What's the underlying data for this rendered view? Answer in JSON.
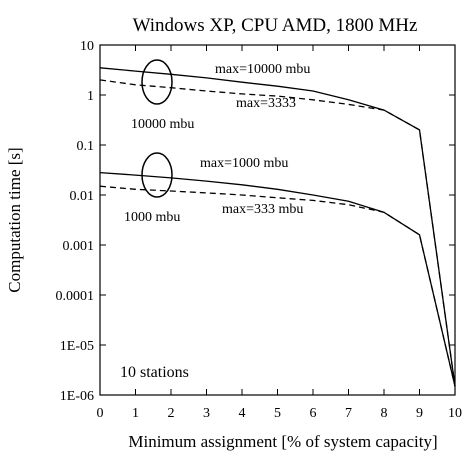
{
  "chart_data": {
    "type": "line",
    "title": "Windows XP, CPU AMD, 1800 MHz",
    "xlabel": "Minimum assignment [% of system capacity]",
    "ylabel": "Computation time [s]",
    "xlim": [
      0,
      10
    ],
    "ylim": [
      1e-06,
      10
    ],
    "y_scale": "log",
    "grid": false,
    "x_ticks": [
      "0",
      "1",
      "2",
      "3",
      "4",
      "5",
      "6",
      "7",
      "8",
      "9",
      "10"
    ],
    "y_ticks": [
      "10",
      "1",
      "0.1",
      "0.01",
      "0.001",
      "0.0001",
      "1E-05",
      "1E-06"
    ],
    "x": [
      0,
      1,
      2,
      3,
      4,
      5,
      6,
      7,
      8,
      9,
      10
    ],
    "series": [
      {
        "name": "max=10000 mbu",
        "style": "solid",
        "values": [
          3.5,
          3.0,
          2.6,
          2.2,
          1.8,
          1.5,
          1.2,
          0.8,
          0.5,
          0.2,
          1.5e-06
        ]
      },
      {
        "name": "max=3333",
        "style": "dashed",
        "values": [
          2.0,
          1.6,
          1.4,
          1.2,
          1.05,
          0.95,
          0.8,
          0.65,
          0.5,
          0.2,
          1.5e-06
        ]
      },
      {
        "name": "max=1000 mbu",
        "style": "solid",
        "values": [
          0.028,
          0.025,
          0.022,
          0.019,
          0.016,
          0.013,
          0.01,
          0.0075,
          0.0045,
          0.0016,
          1.5e-06
        ]
      },
      {
        "name": "max=333 mbu",
        "style": "dashed",
        "values": [
          0.015,
          0.013,
          0.012,
          0.011,
          0.01,
          0.0088,
          0.0078,
          0.0064,
          0.0045,
          0.0016,
          1.5e-06
        ]
      }
    ],
    "annotations": [
      {
        "text": "10000 mbu",
        "ellipse_x": 1.6,
        "ellipse_y": 2.0
      },
      {
        "text": "1000 mbu",
        "ellipse_x": 1.6,
        "ellipse_y": 0.018
      },
      {
        "text": "10 stations"
      }
    ],
    "colors": {
      "line": "#000000",
      "background": "#ffffff"
    }
  }
}
